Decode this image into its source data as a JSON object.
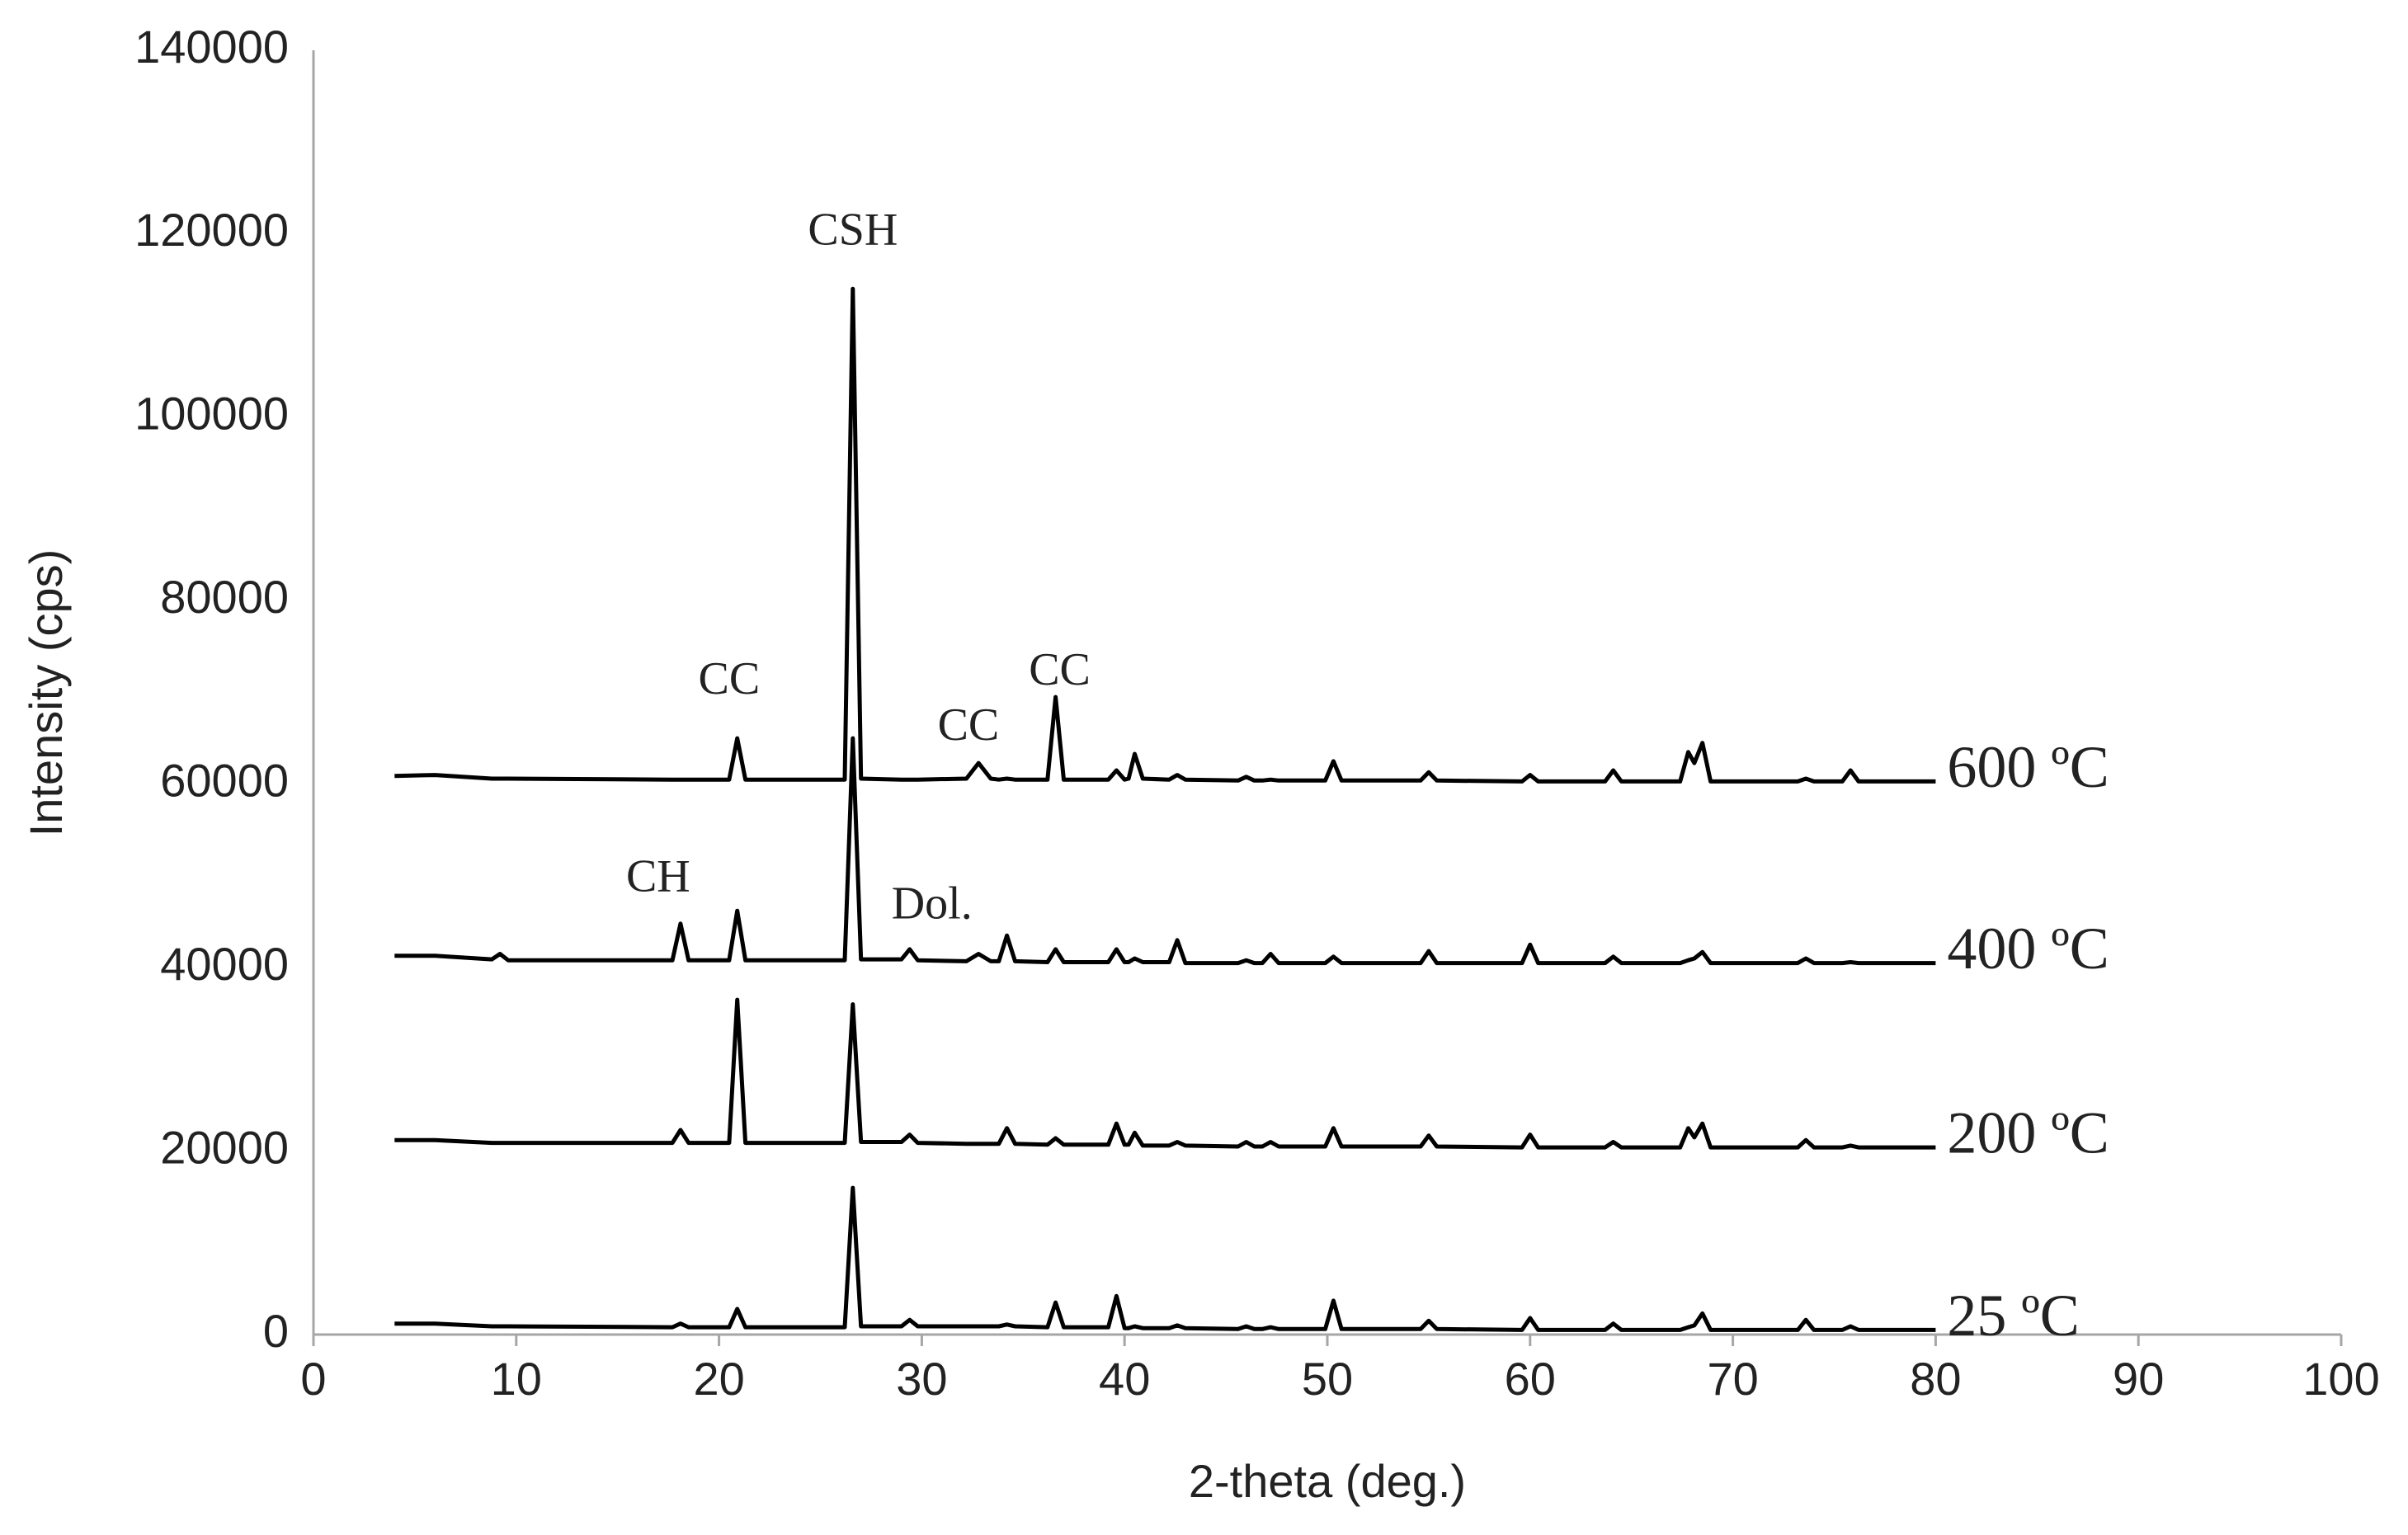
{
  "chart_data": {
    "type": "line",
    "x_label": "2-theta (deg.)",
    "y_label": "Intensity (cps)",
    "xlim": [
      0,
      100
    ],
    "xticks": [
      0,
      10,
      20,
      30,
      40,
      50,
      60,
      70,
      80,
      90,
      100
    ],
    "ylim": [
      0,
      140000
    ],
    "yticks": [
      0,
      20000,
      40000,
      60000,
      80000,
      100000,
      120000,
      140000
    ],
    "grid": false,
    "x": [
      4,
      6,
      8.8,
      9.2,
      9.6,
      17.7,
      18.1,
      18.5,
      20.5,
      20.9,
      21.3,
      26.2,
      26.6,
      27.0,
      29.0,
      29.4,
      29.8,
      32.2,
      32.8,
      33.4,
      33.8,
      34.2,
      34.6,
      36.2,
      36.6,
      37.0,
      39.2,
      39.6,
      40.0,
      40.2,
      40.5,
      40.9,
      42.2,
      42.6,
      43.0,
      45.6,
      46.0,
      46.4,
      46.8,
      47.2,
      47.6,
      49.9,
      50.3,
      50.7,
      54.6,
      55.0,
      55.4,
      59.6,
      60.0,
      60.4,
      63.7,
      64.1,
      64.5,
      67.4,
      67.8,
      68.1,
      68.5,
      68.9,
      73.2,
      73.6,
      74.0,
      75.4,
      75.8,
      76.2,
      80
    ],
    "series": [
      {
        "name": "25 ºC",
        "color": "#000000",
        "values": [
          1200,
          1200,
          900,
          900,
          900,
          800,
          1200,
          800,
          800,
          2800,
          800,
          800,
          16000,
          900,
          900,
          1600,
          900,
          900,
          900,
          900,
          900,
          1100,
          900,
          800,
          3500,
          800,
          800,
          4200,
          700,
          700,
          900,
          700,
          700,
          1000,
          700,
          600,
          900,
          600,
          600,
          800,
          600,
          600,
          3700,
          600,
          600,
          1500,
          600,
          500,
          1800,
          500,
          500,
          1200,
          500,
          500,
          800,
          1000,
          2300,
          500,
          500,
          1600,
          500,
          500,
          900,
          500,
          500
        ]
      },
      {
        "name": "200 ºC",
        "color": "#000000",
        "values": [
          21200,
          21200,
          20900,
          20900,
          20900,
          20900,
          22300,
          20900,
          20900,
          36500,
          20900,
          20900,
          36000,
          21000,
          21000,
          21800,
          20900,
          20800,
          20800,
          20800,
          20800,
          22500,
          20800,
          20700,
          21400,
          20700,
          20700,
          23000,
          20700,
          20700,
          22000,
          20600,
          20600,
          21000,
          20600,
          20500,
          21000,
          20500,
          20500,
          21000,
          20500,
          20500,
          22500,
          20500,
          20500,
          21700,
          20500,
          20400,
          21800,
          20400,
          20400,
          21000,
          20400,
          20400,
          22500,
          21500,
          23000,
          20400,
          20400,
          21200,
          20400,
          20400,
          20600,
          20400,
          20400
        ]
      },
      {
        "name": "400 ºC",
        "color": "#000000",
        "values": [
          41300,
          41300,
          40900,
          41500,
          40800,
          40800,
          44800,
          40800,
          40800,
          46200,
          40800,
          40800,
          65000,
          40900,
          40900,
          42000,
          40800,
          40700,
          41500,
          40700,
          40700,
          43500,
          40700,
          40600,
          42000,
          40600,
          40600,
          42000,
          40600,
          40600,
          41000,
          40600,
          40600,
          43000,
          40500,
          40500,
          40800,
          40500,
          40500,
          41500,
          40500,
          40500,
          41200,
          40500,
          40500,
          41800,
          40500,
          40500,
          42500,
          40500,
          40500,
          41200,
          40500,
          40500,
          40800,
          41000,
          41700,
          40500,
          40500,
          41000,
          40500,
          40500,
          40600,
          40500,
          40500
        ]
      },
      {
        "name": "600 ºC",
        "color": "#000000",
        "values": [
          60900,
          61000,
          60600,
          60600,
          60600,
          60500,
          60500,
          60500,
          60500,
          65000,
          60500,
          60500,
          114000,
          60600,
          60500,
          60500,
          60500,
          60600,
          62300,
          60600,
          60500,
          60600,
          60500,
          60500,
          69500,
          60500,
          60500,
          61500,
          60500,
          60600,
          63300,
          60600,
          60500,
          61000,
          60500,
          60400,
          60800,
          60400,
          60400,
          60500,
          60400,
          60400,
          62500,
          60400,
          60400,
          61300,
          60400,
          60300,
          61000,
          60300,
          60300,
          61500,
          60300,
          60300,
          63500,
          62300,
          64500,
          60300,
          60300,
          60600,
          60300,
          60300,
          61500,
          60300,
          60300
        ]
      }
    ],
    "annotations": [
      {
        "text": "CSH",
        "x": 26.6,
        "y": 120000
      },
      {
        "text": "CC",
        "x": 20.5,
        "y": 71000
      },
      {
        "text": "CC",
        "x": 32.3,
        "y": 66000
      },
      {
        "text": "CC",
        "x": 36.8,
        "y": 72000
      },
      {
        "text": "CH",
        "x": 17,
        "y": 49500
      },
      {
        "text": "Dol.",
        "x": 30.5,
        "y": 46500
      }
    ]
  }
}
